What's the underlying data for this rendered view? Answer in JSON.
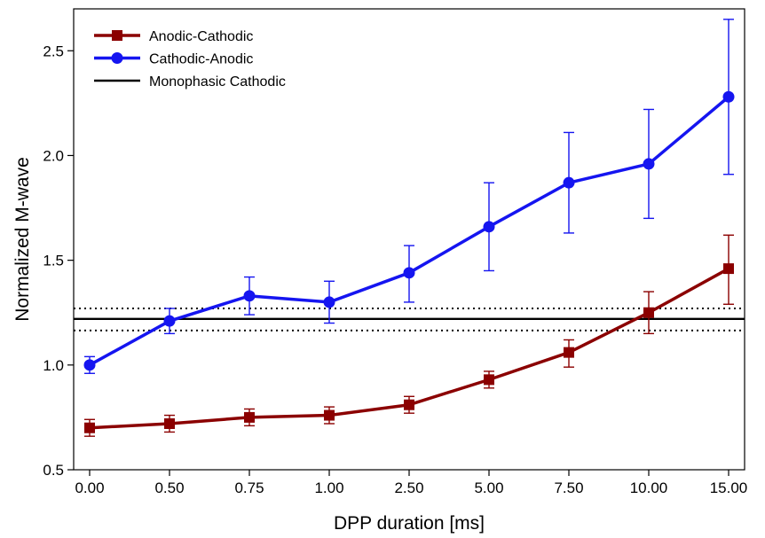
{
  "chart_data": {
    "type": "line",
    "title": "",
    "xlabel": "DPP duration [ms]",
    "ylabel": "Normalized M-wave",
    "categories": [
      "0.00",
      "0.50",
      "0.75",
      "1.00",
      "2.50",
      "5.00",
      "7.50",
      "10.00",
      "15.00"
    ],
    "ylim": [
      0.5,
      2.7
    ],
    "yticks": [
      "0.5",
      "1.0",
      "1.5",
      "2.0",
      "2.5"
    ],
    "grid": false,
    "legend_position": "top-left",
    "series": [
      {
        "name": "Anodic-Cathodic",
        "marker": "square",
        "color": "#8b0000",
        "values": [
          0.7,
          0.72,
          0.75,
          0.76,
          0.81,
          0.93,
          1.06,
          1.25,
          1.46
        ],
        "error_low": [
          0.66,
          0.68,
          0.71,
          0.72,
          0.77,
          0.89,
          0.99,
          1.15,
          1.29
        ],
        "error_high": [
          0.74,
          0.76,
          0.79,
          0.8,
          0.85,
          0.97,
          1.12,
          1.35,
          1.62
        ]
      },
      {
        "name": "Cathodic-Anodic",
        "marker": "circle",
        "color": "#1515f0",
        "values": [
          1.0,
          1.21,
          1.33,
          1.3,
          1.44,
          1.66,
          1.87,
          1.96,
          2.28
        ],
        "error_low": [
          0.96,
          1.15,
          1.24,
          1.2,
          1.3,
          1.45,
          1.63,
          1.7,
          1.91
        ],
        "error_high": [
          1.04,
          1.27,
          1.42,
          1.4,
          1.57,
          1.87,
          2.11,
          2.22,
          2.65
        ]
      }
    ],
    "reference_line": {
      "name": "Monophasic Cathodic",
      "color": "#000000",
      "value": 1.22,
      "band_low": 1.165,
      "band_high": 1.27
    }
  }
}
